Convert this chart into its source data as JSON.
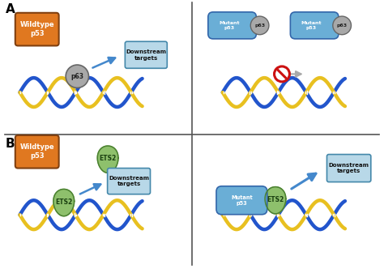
{
  "bg_color": "#ffffff",
  "panel_A_label": "A",
  "panel_B_label": "B",
  "wildtype_color": "#e07820",
  "mutant_color": "#6aaed6",
  "p63_color": "#a8a8a8",
  "ets2_color": "#8ec06c",
  "downstream_color": "#b8d8e8",
  "downstream_text": "Downstream\ntargets",
  "dna_blue": "#2255cc",
  "dna_gold": "#e8c020",
  "divider_color": "#555555",
  "arrow_color": "#4488cc",
  "no_red": "#cc1111"
}
